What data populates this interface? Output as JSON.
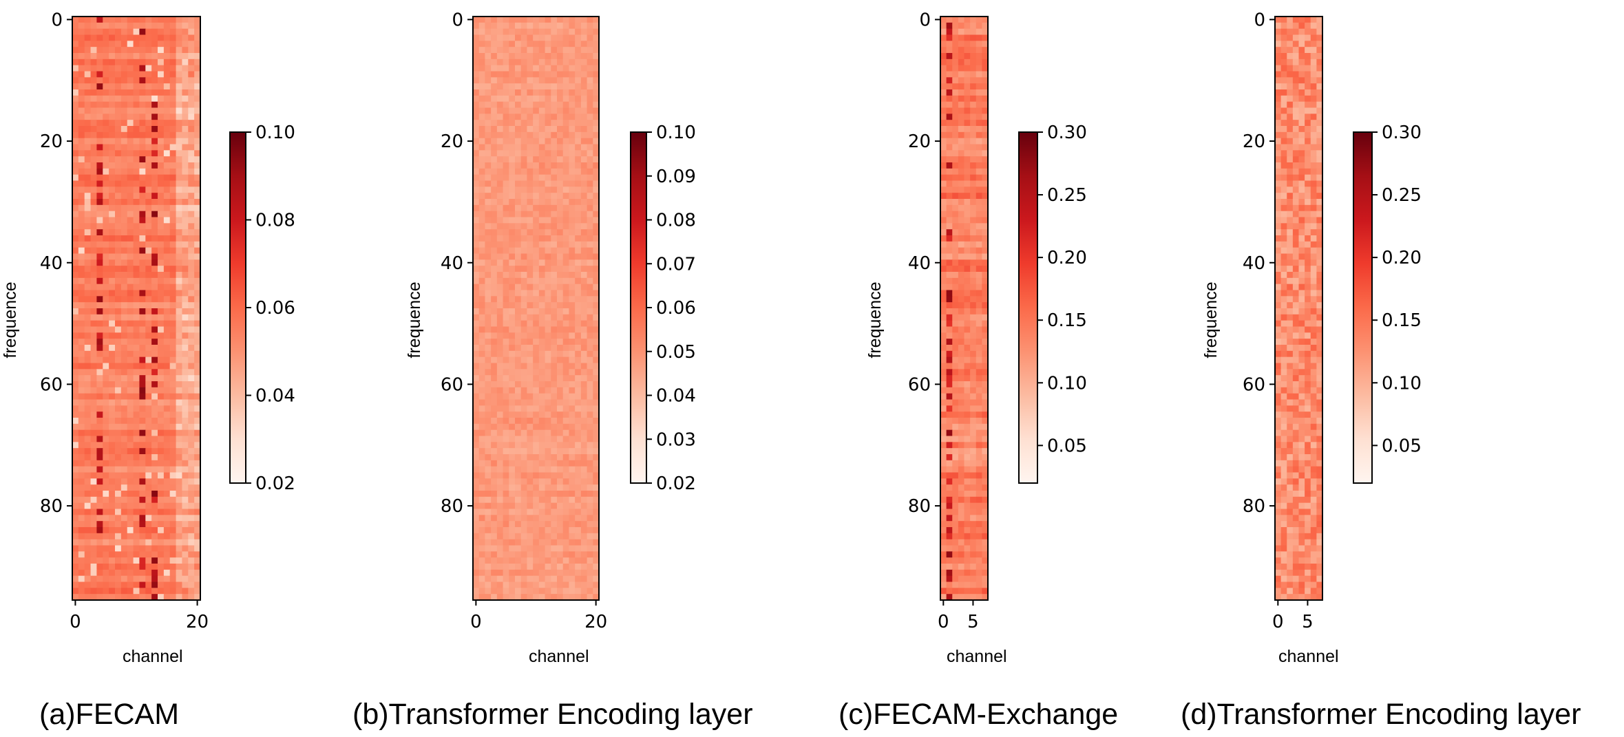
{
  "chart_data": [
    {
      "type": "heatmap",
      "caption": "(a)FECAM",
      "xlabel": "channel",
      "ylabel": "frequence",
      "rows": 96,
      "cols": 21,
      "xticks": [
        0,
        20
      ],
      "yticks": [
        0,
        20,
        40,
        60,
        80
      ],
      "colorbar": {
        "min": 0.02,
        "max": 0.1,
        "ticks": [
          "0.02",
          "0.04",
          "0.06",
          "0.08",
          "0.10"
        ]
      },
      "colormap": "Reds",
      "typical_value": 0.055,
      "dark_columns": [
        4,
        11,
        13
      ],
      "light_columns": [
        17,
        18,
        19,
        20
      ]
    },
    {
      "type": "heatmap",
      "caption": "(b)Transformer Encoding layer",
      "xlabel": "channel",
      "ylabel": "frequence",
      "rows": 96,
      "cols": 21,
      "xticks": [
        0,
        20
      ],
      "yticks": [
        0,
        20,
        40,
        60,
        80
      ],
      "colorbar": {
        "min": 0.02,
        "max": 0.1,
        "ticks": [
          "0.02",
          "0.03",
          "0.04",
          "0.05",
          "0.06",
          "0.07",
          "0.08",
          "0.09",
          "0.10"
        ]
      },
      "colormap": "Reds",
      "typical_value": 0.048
    },
    {
      "type": "heatmap",
      "caption": "(c)FECAM-Exchange",
      "xlabel": "channel",
      "ylabel": "frequence",
      "rows": 96,
      "cols": 8,
      "xticks": [
        0,
        5
      ],
      "yticks": [
        0,
        20,
        40,
        60,
        80
      ],
      "colorbar": {
        "min": 0.02,
        "max": 0.3,
        "ticks": [
          "0.05",
          "0.10",
          "0.15",
          "0.20",
          "0.25",
          "0.30"
        ]
      },
      "colormap": "Reds",
      "typical_value": 0.14,
      "dark_columns": [
        1
      ]
    },
    {
      "type": "heatmap",
      "caption": "(d)Transformer Encoding layer",
      "xlabel": "channel",
      "ylabel": "frequence",
      "rows": 96,
      "cols": 8,
      "xticks": [
        0,
        5
      ],
      "yticks": [
        0,
        20,
        40,
        60,
        80
      ],
      "colorbar": {
        "min": 0.02,
        "max": 0.3,
        "ticks": [
          "0.05",
          "0.10",
          "0.15",
          "0.20",
          "0.25",
          "0.30"
        ]
      },
      "colormap": "Reds",
      "typical_value": 0.13
    }
  ]
}
